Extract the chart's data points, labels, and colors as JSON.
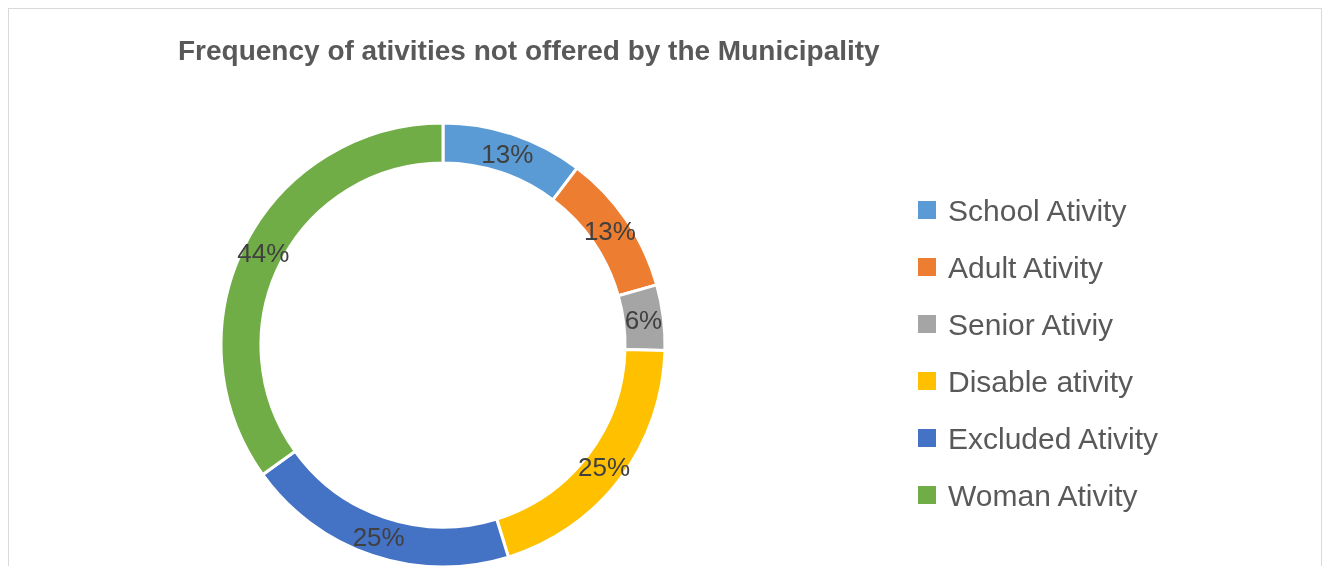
{
  "chart_data": {
    "type": "donut",
    "title": "Frequency of ativities not offered by the Municipality",
    "categories": [
      "School Ativity",
      "Adult Ativity",
      "Senior Ativiy",
      "Disable ativity",
      "Excluded Ativity",
      "Woman Ativity"
    ],
    "values": [
      13,
      13,
      6,
      25,
      25,
      44
    ],
    "value_labels": [
      "13%",
      "13%",
      "6%",
      "25%",
      "25%",
      "44%"
    ],
    "colors": [
      "#5b9bd5",
      "#ed7d31",
      "#a5a5a5",
      "#ffc000",
      "#4472c4",
      "#70ad47"
    ],
    "legend": "right"
  }
}
